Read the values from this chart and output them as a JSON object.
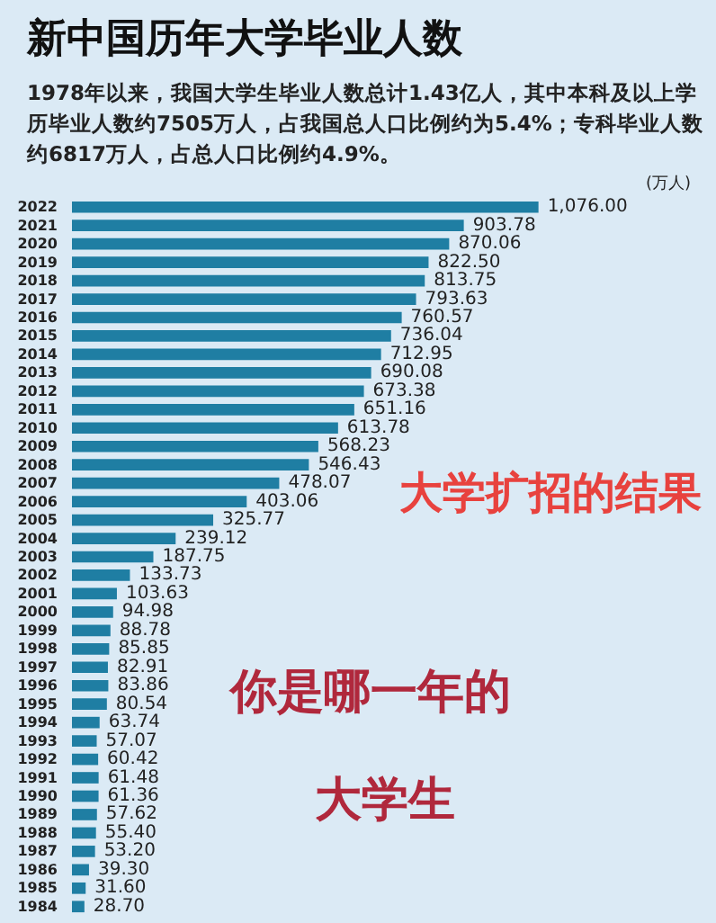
{
  "chart_data": {
    "type": "bar",
    "orientation": "horizontal",
    "title": "新中国历年大学毕业人数",
    "subtitle": "1978年以来，我国大学生毕业人数总计1.43亿人，其中本科及以上学历毕业人数约7505万人，占我国总人口比例约为5.4%；专科毕业人数约6817万人，占总人口比例约4.9%。",
    "categories": [
      "2022",
      "2021",
      "2020",
      "2019",
      "2018",
      "2017",
      "2016",
      "2015",
      "2014",
      "2013",
      "2012",
      "2011",
      "2010",
      "2009",
      "2008",
      "2007",
      "2006",
      "2005",
      "2004",
      "2003",
      "2002",
      "2001",
      "2000",
      "1999",
      "1998",
      "1997",
      "1996",
      "1995",
      "1994",
      "1993",
      "1992",
      "1991",
      "1990",
      "1989",
      "1988",
      "1987",
      "1986",
      "1985",
      "1984"
    ],
    "values": [
      1076.0,
      903.78,
      870.06,
      822.5,
      813.75,
      793.63,
      760.57,
      736.04,
      712.95,
      690.08,
      673.38,
      651.16,
      613.78,
      568.23,
      546.43,
      478.07,
      403.06,
      325.77,
      239.12,
      187.75,
      133.73,
      103.63,
      94.98,
      88.78,
      85.85,
      82.91,
      83.86,
      80.54,
      63.74,
      57.07,
      60.42,
      61.48,
      61.36,
      57.62,
      55.4,
      53.2,
      39.3,
      31.6,
      28.7
    ],
    "value_labels": [
      "1,076.00",
      "903.78",
      "870.06",
      "822.50",
      "813.75",
      "793.63",
      "760.57",
      "736.04",
      "712.95",
      "690.08",
      "673.38",
      "651.16",
      "613.78",
      "568.23",
      "546.43",
      "478.07",
      "403.06",
      "325.77",
      "239.12",
      "187.75",
      "133.73",
      "103.63",
      "94.98",
      "88.78",
      "85.85",
      "82.91",
      "83.86",
      "80.54",
      "63.74",
      "57.07",
      "60.42",
      "61.48",
      "61.36",
      "57.62",
      "55.40",
      "53.20",
      "39.30",
      "31.60",
      "28.70"
    ],
    "color": "#1f7ea3",
    "annotations": [
      "(万人)",
      "大学扩招的结果",
      "你是哪一年的",
      "大学生"
    ]
  }
}
